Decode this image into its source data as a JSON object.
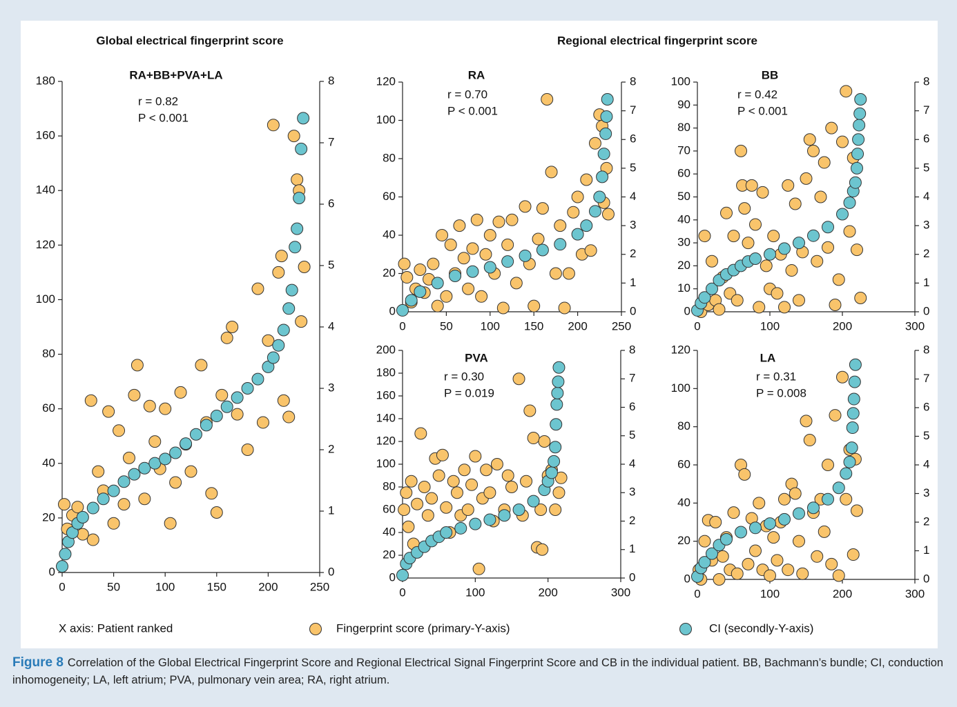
{
  "headings": [
    "Global electrical fingerprint score",
    "Regional electrical fingerprint score"
  ],
  "x_axis_note": "X axis: Patient ranked",
  "caption": {
    "label": "Figure 8",
    "text": "Correlation of the Global Electrical Fingerprint Score and Regional Electrical Signal Fingerprint Score and CB in the individual patient. BB, Bachmann’s bundle; CI, conduction inhomogeneity; LA, left atrium; PVA, pulmonary vein area; RA, right atrium."
  },
  "chart_data": [
    {
      "type": "scatter",
      "title": "RA+BB+PVA+LA",
      "stats": [
        "r = 0.82",
        "P < 0.001"
      ],
      "xlim": [
        0,
        250
      ],
      "xticks": [
        0,
        50,
        100,
        150,
        200,
        250
      ],
      "ylim": [
        0,
        180
      ],
      "yticks": [
        0,
        20,
        40,
        60,
        80,
        100,
        120,
        140,
        160,
        180
      ],
      "y2lim": [
        0,
        8
      ],
      "y2ticks": [
        0,
        1,
        2,
        3,
        4,
        5,
        6,
        7,
        8
      ],
      "series": [
        {
          "name": "Fingerprint score (primary-Y-axis)",
          "color": "#f9c46b",
          "x": [
            2,
            5,
            10,
            15,
            20,
            28,
            30,
            35,
            40,
            45,
            50,
            55,
            60,
            65,
            70,
            73,
            80,
            85,
            90,
            95,
            100,
            105,
            110,
            115,
            120,
            125,
            135,
            140,
            145,
            150,
            155,
            160,
            165,
            170,
            180,
            190,
            195,
            200,
            205,
            210,
            213,
            215,
            220,
            225,
            228,
            230,
            232,
            235
          ],
          "values": [
            25,
            16,
            21,
            24,
            14,
            63,
            12,
            37,
            30,
            59,
            18,
            52,
            25,
            42,
            65,
            76,
            27,
            61,
            48,
            38,
            60,
            18,
            33,
            66,
            47,
            37,
            76,
            55,
            29,
            22,
            65,
            86,
            90,
            58,
            45,
            104,
            55,
            85,
            164,
            110,
            116,
            63,
            57,
            160,
            144,
            140,
            92,
            112
          ]
        },
        {
          "name": "CI (secondly-Y-axis)",
          "color": "#6cc5cf",
          "axis": "y2",
          "x": [
            0,
            3,
            6,
            10,
            15,
            20,
            30,
            40,
            50,
            60,
            70,
            80,
            90,
            100,
            110,
            120,
            130,
            140,
            150,
            160,
            170,
            180,
            190,
            200,
            205,
            210,
            215,
            220,
            223,
            226,
            228,
            230,
            232,
            234
          ],
          "values": [
            0.1,
            0.3,
            0.5,
            0.65,
            0.8,
            0.9,
            1.05,
            1.2,
            1.33,
            1.48,
            1.6,
            1.7,
            1.78,
            1.85,
            1.95,
            2.1,
            2.25,
            2.4,
            2.55,
            2.7,
            2.85,
            3.0,
            3.15,
            3.35,
            3.5,
            3.7,
            3.95,
            4.3,
            4.6,
            5.3,
            5.6,
            6.1,
            6.9,
            7.4
          ]
        }
      ]
    },
    {
      "type": "scatter",
      "title": "RA",
      "stats": [
        "r = 0.70",
        "P < 0.001"
      ],
      "xlim": [
        0,
        250
      ],
      "xticks": [
        0,
        50,
        100,
        150,
        200,
        250
      ],
      "ylim": [
        0,
        120
      ],
      "yticks": [
        0,
        20,
        40,
        60,
        80,
        100,
        120
      ],
      "y2lim": [
        0,
        8
      ],
      "y2ticks": [
        0,
        1,
        2,
        3,
        4,
        5,
        6,
        7,
        8
      ],
      "series": [
        {
          "name": "Fingerprint score (primary-Y-axis)",
          "color": "#f9c46b",
          "x": [
            2,
            5,
            10,
            15,
            20,
            25,
            30,
            35,
            40,
            45,
            50,
            55,
            60,
            65,
            70,
            75,
            80,
            85,
            90,
            95,
            100,
            105,
            110,
            115,
            120,
            125,
            130,
            140,
            145,
            150,
            155,
            160,
            165,
            170,
            175,
            180,
            185,
            190,
            195,
            200,
            205,
            210,
            215,
            220,
            225,
            228,
            230,
            233,
            235
          ],
          "values": [
            25,
            18,
            5,
            12,
            22,
            10,
            17,
            25,
            3,
            40,
            8,
            35,
            20,
            45,
            28,
            12,
            33,
            48,
            8,
            30,
            40,
            20,
            47,
            2,
            35,
            48,
            15,
            55,
            25,
            3,
            38,
            54,
            111,
            73,
            20,
            45,
            2,
            20,
            52,
            60,
            30,
            69,
            32,
            88,
            103,
            97,
            57,
            75,
            51
          ]
        },
        {
          "name": "CI (secondly-Y-axis)",
          "color": "#6cc5cf",
          "axis": "y2",
          "x": [
            0,
            10,
            20,
            40,
            60,
            80,
            100,
            120,
            140,
            160,
            180,
            200,
            210,
            220,
            225,
            228,
            230,
            232,
            233,
            234
          ],
          "values": [
            0.05,
            0.4,
            0.7,
            1.0,
            1.25,
            1.4,
            1.55,
            1.75,
            1.95,
            2.15,
            2.35,
            2.7,
            3.0,
            3.5,
            4.0,
            4.7,
            5.5,
            6.2,
            6.8,
            7.4
          ]
        }
      ]
    },
    {
      "type": "scatter",
      "title": "BB",
      "stats": [
        "r = 0.42",
        "P < 0.001"
      ],
      "xlim": [
        0,
        300
      ],
      "xticks": [
        0,
        100,
        200,
        300
      ],
      "ylim": [
        0,
        100
      ],
      "yticks": [
        0,
        10,
        20,
        30,
        40,
        50,
        60,
        70,
        80,
        90,
        100
      ],
      "y2lim": [
        0,
        8
      ],
      "y2ticks": [
        0,
        1,
        2,
        3,
        4,
        5,
        6,
        7,
        8
      ],
      "series": [
        {
          "name": "Fingerprint score (primary-Y-axis)",
          "color": "#f9c46b",
          "x": [
            5,
            10,
            15,
            20,
            25,
            30,
            35,
            40,
            45,
            50,
            55,
            60,
            62,
            65,
            70,
            75,
            80,
            85,
            90,
            95,
            100,
            105,
            110,
            115,
            120,
            125,
            130,
            135,
            140,
            145,
            150,
            155,
            160,
            165,
            170,
            175,
            180,
            185,
            190,
            195,
            200,
            205,
            210,
            215,
            220,
            225
          ],
          "values": [
            0,
            33,
            3,
            22,
            5,
            1,
            15,
            43,
            8,
            33,
            5,
            70,
            55,
            45,
            30,
            55,
            38,
            2,
            52,
            20,
            10,
            33,
            8,
            25,
            2,
            55,
            18,
            47,
            5,
            26,
            58,
            75,
            70,
            22,
            50,
            65,
            28,
            80,
            3,
            14,
            74,
            96,
            35,
            67,
            27,
            6
          ]
        },
        {
          "name": "CI (secondly-Y-axis)",
          "color": "#6cc5cf",
          "axis": "y2",
          "x": [
            0,
            5,
            10,
            20,
            30,
            40,
            50,
            60,
            70,
            80,
            100,
            120,
            140,
            160,
            180,
            200,
            210,
            215,
            218,
            220,
            221,
            222,
            223,
            224,
            225
          ],
          "values": [
            0.05,
            0.3,
            0.5,
            0.8,
            1.1,
            1.3,
            1.45,
            1.6,
            1.75,
            1.85,
            2.0,
            2.2,
            2.4,
            2.65,
            2.95,
            3.4,
            3.8,
            4.2,
            4.5,
            5.0,
            5.5,
            6.0,
            6.5,
            6.9,
            7.4
          ]
        }
      ]
    },
    {
      "type": "scatter",
      "title": "PVA",
      "stats": [
        "r = 0.30",
        "P = 0.019"
      ],
      "xlim": [
        0,
        300
      ],
      "xticks": [
        0,
        100,
        200,
        300
      ],
      "ylim": [
        0,
        200
      ],
      "yticks": [
        0,
        20,
        40,
        60,
        80,
        100,
        120,
        140,
        160,
        180,
        200
      ],
      "y2lim": [
        0,
        8
      ],
      "y2ticks": [
        0,
        1,
        2,
        3,
        4,
        5,
        6,
        7,
        8
      ],
      "series": [
        {
          "name": "Fingerprint score (primary-Y-axis)",
          "color": "#f9c46b",
          "x": [
            2,
            5,
            8,
            12,
            15,
            20,
            25,
            30,
            35,
            40,
            45,
            50,
            55,
            60,
            65,
            70,
            75,
            80,
            85,
            90,
            95,
            100,
            105,
            110,
            115,
            120,
            125,
            130,
            140,
            145,
            150,
            160,
            165,
            170,
            175,
            180,
            185,
            190,
            192,
            195,
            200,
            205,
            210,
            215,
            218
          ],
          "values": [
            60,
            75,
            45,
            85,
            30,
            65,
            127,
            80,
            55,
            70,
            105,
            90,
            108,
            62,
            40,
            85,
            75,
            55,
            95,
            60,
            82,
            107,
            8,
            70,
            95,
            75,
            50,
            100,
            60,
            90,
            80,
            175,
            55,
            85,
            147,
            123,
            27,
            60,
            25,
            120,
            90,
            95,
            60,
            75,
            88
          ]
        },
        {
          "name": "CI (secondly-Y-axis)",
          "color": "#6cc5cf",
          "axis": "y2",
          "x": [
            0,
            5,
            10,
            20,
            30,
            40,
            50,
            60,
            80,
            100,
            120,
            140,
            160,
            180,
            195,
            200,
            205,
            208,
            210,
            211,
            212,
            213,
            214,
            215
          ],
          "values": [
            0.1,
            0.5,
            0.7,
            0.9,
            1.1,
            1.3,
            1.45,
            1.6,
            1.75,
            1.9,
            2.05,
            2.2,
            2.4,
            2.7,
            3.1,
            3.4,
            3.7,
            4.1,
            4.6,
            5.4,
            6.1,
            6.5,
            6.9,
            7.4
          ]
        }
      ]
    },
    {
      "type": "scatter",
      "title": "LA",
      "stats": [
        "r = 0.31",
        "P = 0.008"
      ],
      "xlim": [
        0,
        300
      ],
      "xticks": [
        0,
        100,
        200,
        300
      ],
      "ylim": [
        0,
        120
      ],
      "yticks": [
        0,
        20,
        40,
        60,
        80,
        100,
        120
      ],
      "y2lim": [
        0,
        8
      ],
      "y2ticks": [
        0,
        1,
        2,
        3,
        4,
        5,
        6,
        7,
        8
      ],
      "series": [
        {
          "name": "Fingerprint score (primary-Y-axis)",
          "color": "#f9c46b",
          "x": [
            2,
            5,
            10,
            15,
            20,
            25,
            30,
            35,
            40,
            45,
            50,
            55,
            60,
            65,
            70,
            75,
            80,
            85,
            90,
            95,
            100,
            105,
            110,
            115,
            120,
            125,
            130,
            135,
            140,
            145,
            150,
            155,
            160,
            165,
            170,
            175,
            180,
            185,
            190,
            195,
            200,
            205,
            210,
            215,
            218,
            220
          ],
          "values": [
            5,
            0,
            20,
            31,
            10,
            30,
            0,
            12,
            22,
            5,
            35,
            3,
            60,
            55,
            8,
            32,
            15,
            40,
            5,
            28,
            2,
            22,
            10,
            30,
            42,
            5,
            50,
            45,
            20,
            3,
            83,
            73,
            35,
            12,
            42,
            25,
            60,
            8,
            86,
            2,
            106,
            42,
            68,
            13,
            63,
            36
          ]
        },
        {
          "name": "CI (secondly-Y-axis)",
          "color": "#6cc5cf",
          "axis": "y2",
          "x": [
            0,
            5,
            10,
            20,
            30,
            40,
            60,
            80,
            100,
            120,
            140,
            160,
            180,
            195,
            205,
            210,
            213,
            214,
            215,
            216,
            217,
            218
          ],
          "values": [
            0.1,
            0.4,
            0.6,
            0.9,
            1.2,
            1.4,
            1.65,
            1.8,
            1.95,
            2.1,
            2.3,
            2.5,
            2.8,
            3.2,
            3.7,
            4.1,
            4.6,
            5.3,
            5.8,
            6.3,
            6.9,
            7.5
          ]
        }
      ]
    }
  ]
}
